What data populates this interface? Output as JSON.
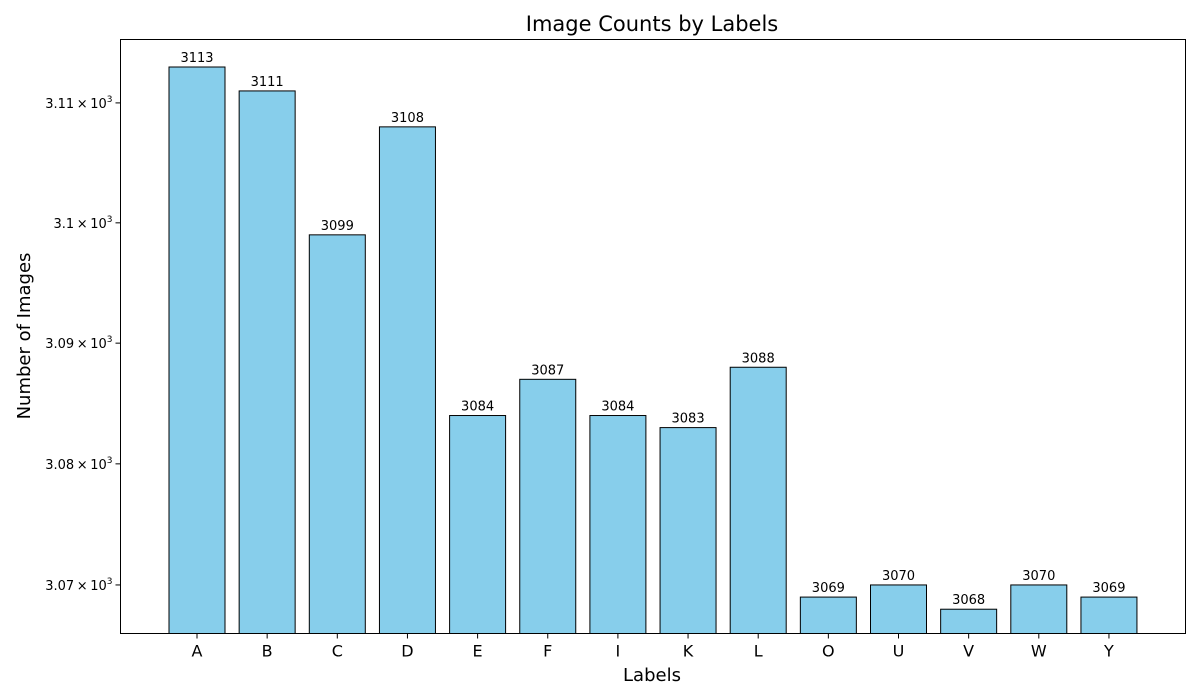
{
  "chart_data": {
    "type": "bar",
    "title": "Image Counts by Labels",
    "xlabel": "Labels",
    "ylabel": "Number of Images",
    "y_scale": "log",
    "ylim": [
      3066,
      3115.3
    ],
    "y_ticks": [
      3070,
      3080,
      3090,
      3100,
      3110
    ],
    "y_tick_labels": [
      {
        "mantissa": "3.07",
        "exponent": "3"
      },
      {
        "mantissa": "3.08",
        "exponent": "3"
      },
      {
        "mantissa": "3.09",
        "exponent": "3"
      },
      {
        "mantissa": "3.1",
        "exponent": "3"
      },
      {
        "mantissa": "3.11",
        "exponent": "3"
      }
    ],
    "categories": [
      "A",
      "B",
      "C",
      "D",
      "E",
      "F",
      "I",
      "K",
      "L",
      "O",
      "U",
      "V",
      "W",
      "Y"
    ],
    "values": [
      3113,
      3111,
      3099,
      3108,
      3084,
      3087,
      3084,
      3083,
      3088,
      3069,
      3070,
      3068,
      3070,
      3069
    ],
    "bar_color": "#87ceeb",
    "bar_edge_color": "#000000",
    "grid": false,
    "legend": "none"
  }
}
